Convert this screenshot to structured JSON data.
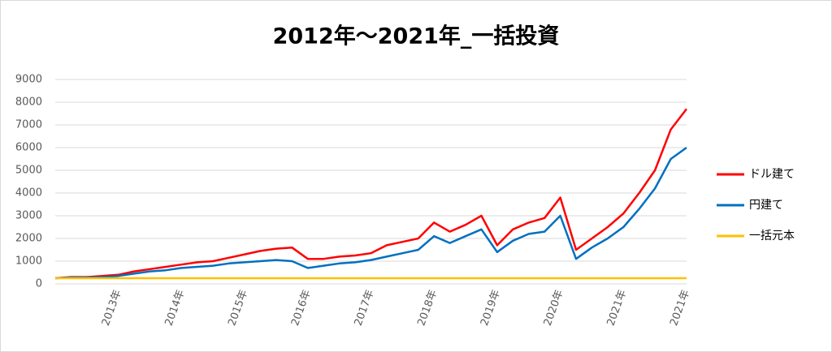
{
  "chart_data": {
    "type": "line",
    "title": "2012年〜2021年_一括投資",
    "categories": [
      null,
      null,
      null,
      null,
      "2013年",
      null,
      null,
      null,
      "2014年",
      null,
      null,
      null,
      "2015年",
      null,
      null,
      null,
      "2016年",
      null,
      null,
      null,
      "2017年",
      null,
      null,
      null,
      "2018年",
      null,
      null,
      null,
      "2019年",
      null,
      null,
      null,
      "2020年",
      null,
      null,
      null,
      "2021年",
      null,
      null,
      null,
      "2021年"
    ],
    "series": [
      {
        "name": "ドル建て",
        "color": "#ff0000",
        "values": [
          250,
          300,
          300,
          350,
          400,
          550,
          650,
          750,
          850,
          950,
          1000,
          1150,
          1300,
          1450,
          1550,
          1600,
          1100,
          1100,
          1200,
          1250,
          1350,
          1700,
          1850,
          2000,
          2700,
          2300,
          2600,
          3000,
          1700,
          2400,
          2700,
          2900,
          3800,
          1500,
          2000,
          2500,
          3100,
          4000,
          5000,
          6800,
          7700
        ]
      },
      {
        "name": "円建て",
        "color": "#0070c0",
        "values": [
          250,
          280,
          280,
          300,
          350,
          450,
          550,
          600,
          700,
          750,
          800,
          900,
          950,
          1000,
          1050,
          1000,
          700,
          800,
          900,
          950,
          1050,
          1200,
          1350,
          1500,
          2100,
          1800,
          2100,
          2400,
          1400,
          1900,
          2200,
          2300,
          3000,
          1100,
          1600,
          2000,
          2500,
          3300,
          4200,
          5500,
          6000
        ]
      },
      {
        "name": "一括元本",
        "color": "#ffc000",
        "values": [
          250,
          250,
          250,
          250,
          250,
          250,
          250,
          250,
          250,
          250,
          250,
          250,
          250,
          250,
          250,
          250,
          250,
          250,
          250,
          250,
          250,
          250,
          250,
          250,
          250,
          250,
          250,
          250,
          250,
          250,
          250,
          250,
          250,
          250,
          250,
          250,
          250,
          250,
          250,
          250,
          250
        ]
      }
    ],
    "ylim": [
      0,
      9000
    ],
    "yticks": [
      0,
      1000,
      2000,
      3000,
      4000,
      5000,
      6000,
      7000,
      8000,
      9000
    ],
    "grid": true,
    "legend": "right"
  }
}
